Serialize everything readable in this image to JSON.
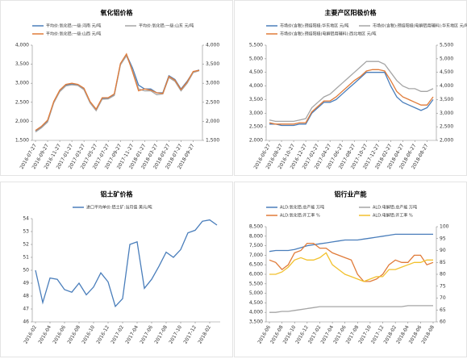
{
  "chart_data": [
    {
      "type": "line",
      "title": "氧化铝价格",
      "categories": [
        "2016-07-27",
        null,
        "2016-09-27",
        null,
        "2016-11-27",
        null,
        "2017-01-27",
        null,
        "2017-03-27",
        null,
        "2017-05-27",
        null,
        "2017-07-27",
        null,
        "2017-09-27",
        null,
        "2017-11-27",
        null,
        "2018-01-27",
        null,
        "2018-03-27",
        null,
        "2018-05-27",
        null,
        "2018-07-27",
        null,
        "2018-09-27",
        null
      ],
      "series": [
        {
          "name": "平均价:氧化铝:一级:河南 元/吨",
          "color": "#4a7ebb",
          "values": [
            1750,
            1850,
            2000,
            2500,
            2800,
            2950,
            2980,
            2950,
            2850,
            2500,
            2300,
            2600,
            2600,
            2700,
            3500,
            3750,
            3400,
            2950,
            2850,
            2850,
            2750,
            2750,
            3200,
            3100,
            2850,
            3050,
            3300,
            3350
          ]
        },
        {
          "name": "平均价:氧化铝:一级:山东 元/吨",
          "color": "#a5a5a5",
          "values": [
            1720,
            1830,
            1980,
            2480,
            2780,
            2930,
            2960,
            2940,
            2830,
            2480,
            2280,
            2580,
            2590,
            2680,
            3480,
            3720,
            3350,
            2850,
            2800,
            2800,
            2700,
            2720,
            3150,
            3050,
            2800,
            3000,
            3280,
            3330
          ]
        },
        {
          "name": "平均价:氧化铝:一级:山西 元/吨",
          "color": "#e07b39",
          "values": [
            1760,
            1870,
            2030,
            2520,
            2820,
            2970,
            3000,
            2970,
            2870,
            2520,
            2320,
            2620,
            2620,
            2720,
            3520,
            3770,
            3300,
            2800,
            2850,
            2820,
            2750,
            2730,
            3180,
            3080,
            2830,
            3030,
            3310,
            3340
          ]
        }
      ],
      "ylim": [
        1500,
        4000
      ],
      "yticks": [
        {
          "value": 1500,
          "label": "1,500"
        },
        {
          "value": 2000,
          "label": "2,000"
        },
        {
          "value": 2500,
          "label": "2,500"
        },
        {
          "value": 3000,
          "label": "3,000"
        },
        {
          "value": 3500,
          "label": "3,500"
        },
        {
          "value": 4000,
          "label": "4,000"
        }
      ],
      "y2lim": [
        1500,
        4000
      ],
      "y2ticks": [
        {
          "value": 1500,
          "label": "1,500"
        },
        {
          "value": 2000,
          "label": "2,000"
        },
        {
          "value": 2500,
          "label": "2,500"
        },
        {
          "value": 3000,
          "label": "3,000"
        },
        {
          "value": 3500,
          "label": "3,500"
        },
        {
          "value": 4000,
          "label": "4,000"
        }
      ]
    },
    {
      "type": "line",
      "title": "主要产区阳极价格",
      "categories": [
        "2016-06-27",
        null,
        "2016-08-27",
        null,
        "2016-10-27",
        null,
        "2016-12-27",
        null,
        "2017-02-27",
        null,
        "2017-04-27",
        null,
        "2017-06-27",
        null,
        "2017-08-27",
        null,
        "2017-10-27",
        null,
        "2017-12-27",
        null,
        "2018-02-27",
        null,
        "2018-04-27",
        null,
        "2018-06-27",
        null,
        "2018-08-27",
        null
      ],
      "series": [
        {
          "name": "市场价(含税):预焙阳极:华东地区 元/吨",
          "color": "#4a7ebb",
          "values": [
            2600,
            2600,
            2550,
            2550,
            2550,
            2600,
            2600,
            3000,
            3200,
            3400,
            3400,
            3500,
            3700,
            3900,
            4100,
            4300,
            4500,
            4500,
            4500,
            4500,
            4000,
            3600,
            3400,
            3300,
            3200,
            3100,
            3200,
            3500
          ]
        },
        {
          "name": "市场价(含税):预焙阳极(电解铝用辅料):华东地区 元/吨",
          "color": "#a5a5a5",
          "values": [
            2750,
            2700,
            2700,
            2700,
            2700,
            2750,
            2800,
            3200,
            3400,
            3600,
            3700,
            3900,
            4100,
            4300,
            4500,
            4700,
            4900,
            4900,
            4900,
            4800,
            4500,
            4200,
            4000,
            3900,
            3900,
            3800,
            3800,
            3900
          ]
        },
        {
          "name": "市场价(含税):预焙阳极(电解铝用辅料):西北地区 元/吨",
          "color": "#e07b39",
          "values": [
            2650,
            2600,
            2600,
            2600,
            2600,
            2650,
            2650,
            3050,
            3250,
            3450,
            3450,
            3600,
            3800,
            4000,
            4200,
            4350,
            4550,
            4600,
            4600,
            4550,
            4200,
            3800,
            3600,
            3500,
            3400,
            3300,
            3300,
            3600
          ]
        }
      ],
      "ylim": [
        2000,
        5500
      ],
      "yticks": [
        {
          "value": 2000,
          "label": "2,000"
        },
        {
          "value": 2500,
          "label": "2,500"
        },
        {
          "value": 3000,
          "label": "3,000"
        },
        {
          "value": 3500,
          "label": "3,500"
        },
        {
          "value": 4000,
          "label": "4,000"
        },
        {
          "value": 4500,
          "label": "4,500"
        },
        {
          "value": 5000,
          "label": "5,000"
        },
        {
          "value": 5500,
          "label": "5,500"
        }
      ],
      "y2lim": [
        2000,
        5500
      ],
      "y2ticks": [
        {
          "value": 2000,
          "label": "2,000"
        },
        {
          "value": 2500,
          "label": "2,500"
        },
        {
          "value": 3000,
          "label": "3,000"
        },
        {
          "value": 3500,
          "label": "3,500"
        },
        {
          "value": 4000,
          "label": "4,000"
        },
        {
          "value": 4500,
          "label": "4,500"
        },
        {
          "value": 5000,
          "label": "5,000"
        },
        {
          "value": 5500,
          "label": "5,500"
        }
      ]
    },
    {
      "type": "line",
      "title": "铝土矿价格",
      "categories": [
        "2016-02",
        null,
        "2016-04",
        null,
        "2016-06",
        null,
        "2016-08",
        null,
        "2016-10",
        null,
        "2016-12",
        null,
        "2017-02",
        null,
        "2017-04",
        null,
        "2017-06",
        null,
        "2017-08",
        null,
        "2017-10",
        null,
        "2017-12",
        null,
        "2018-02",
        null
      ],
      "series": [
        {
          "name": "进口平均单价:铝土矿:当月值 美元/吨",
          "color": "#4a7ebb",
          "values": [
            50,
            47.5,
            49.4,
            49.3,
            48.5,
            48.3,
            49,
            48.1,
            48.7,
            49.8,
            49.1,
            47.2,
            47.8,
            52,
            52.2,
            48.6,
            49.3,
            50.3,
            51.4,
            51,
            51.6,
            52.9,
            53.1,
            53.8,
            53.9,
            53.5
          ]
        }
      ],
      "ylim": [
        46,
        54
      ],
      "yticks": [
        46,
        47,
        48,
        49,
        50,
        51,
        52,
        53,
        54
      ]
    },
    {
      "type": "line",
      "title": "铝行业产能",
      "categories": [
        "2016-06",
        null,
        "2016-08",
        null,
        "2016-10",
        null,
        "2016-12",
        null,
        "2017-02",
        null,
        "2017-04",
        null,
        "2017-06",
        null,
        "2017-08",
        null,
        "2017-10",
        null,
        "2017-12",
        null,
        "2018-02",
        null,
        "2018-04",
        null,
        "2018-06",
        null,
        "2018-08"
      ],
      "series": [
        {
          "name": "ALD:氧化铝:总产能 万吨",
          "color": "#4a7ebb",
          "values": [
            7200,
            7250,
            7250,
            7250,
            7300,
            7400,
            7500,
            7550,
            7600,
            7650,
            7700,
            7750,
            7800,
            7800,
            7800,
            7850,
            7900,
            7950,
            8000,
            8050,
            8100,
            8100,
            8100,
            8100,
            8100,
            8100,
            8100
          ]
        },
        {
          "name": "ALD:电解铝:总产能 万吨",
          "color": "#a5a5a5",
          "values": [
            4000,
            4000,
            4050,
            4050,
            4100,
            4150,
            4200,
            4250,
            4300,
            4300,
            4300,
            4300,
            4300,
            4300,
            4300,
            4300,
            4300,
            4300,
            4300,
            4300,
            4300,
            4300,
            4350,
            4350,
            4350,
            4350,
            4350
          ]
        },
        {
          "name": "ALD:氧化铝:开工率 %",
          "color": "#e07b39",
          "axis": "y2",
          "values": [
            86,
            85,
            82,
            84,
            89,
            90,
            93,
            93,
            91,
            91,
            89,
            88,
            87,
            86,
            80,
            77,
            77,
            78,
            80,
            84,
            86,
            85,
            85,
            88,
            88,
            84,
            85
          ]
        },
        {
          "name": "ALD:电解铝:开工率 %",
          "color": "#f2c12e",
          "axis": "y2",
          "values": [
            80,
            80,
            81,
            83,
            86,
            87,
            86,
            86,
            87,
            89,
            84,
            82,
            80,
            79,
            78,
            77,
            78,
            79,
            79,
            82,
            82,
            83,
            84,
            85,
            85,
            86,
            86
          ]
        }
      ],
      "ylim": [
        3500,
        8500
      ],
      "yticks": [
        {
          "value": 3500,
          "label": "3,500"
        },
        {
          "value": 4000,
          "label": "4,000"
        },
        {
          "value": 4500,
          "label": "4,500"
        },
        {
          "value": 5000,
          "label": "5,000"
        },
        {
          "value": 5500,
          "label": "5,500"
        },
        {
          "value": 6000,
          "label": "6,000"
        },
        {
          "value": 6500,
          "label": "6,500"
        },
        {
          "value": 7000,
          "label": "7,000"
        },
        {
          "value": 7500,
          "label": "7,500"
        },
        {
          "value": 8000,
          "label": "8,000"
        },
        {
          "value": 8500,
          "label": "8,500"
        }
      ],
      "y2lim": [
        60,
        100
      ],
      "y2ticks": [
        60,
        65,
        70,
        75,
        80,
        85,
        90,
        95,
        100
      ]
    }
  ]
}
